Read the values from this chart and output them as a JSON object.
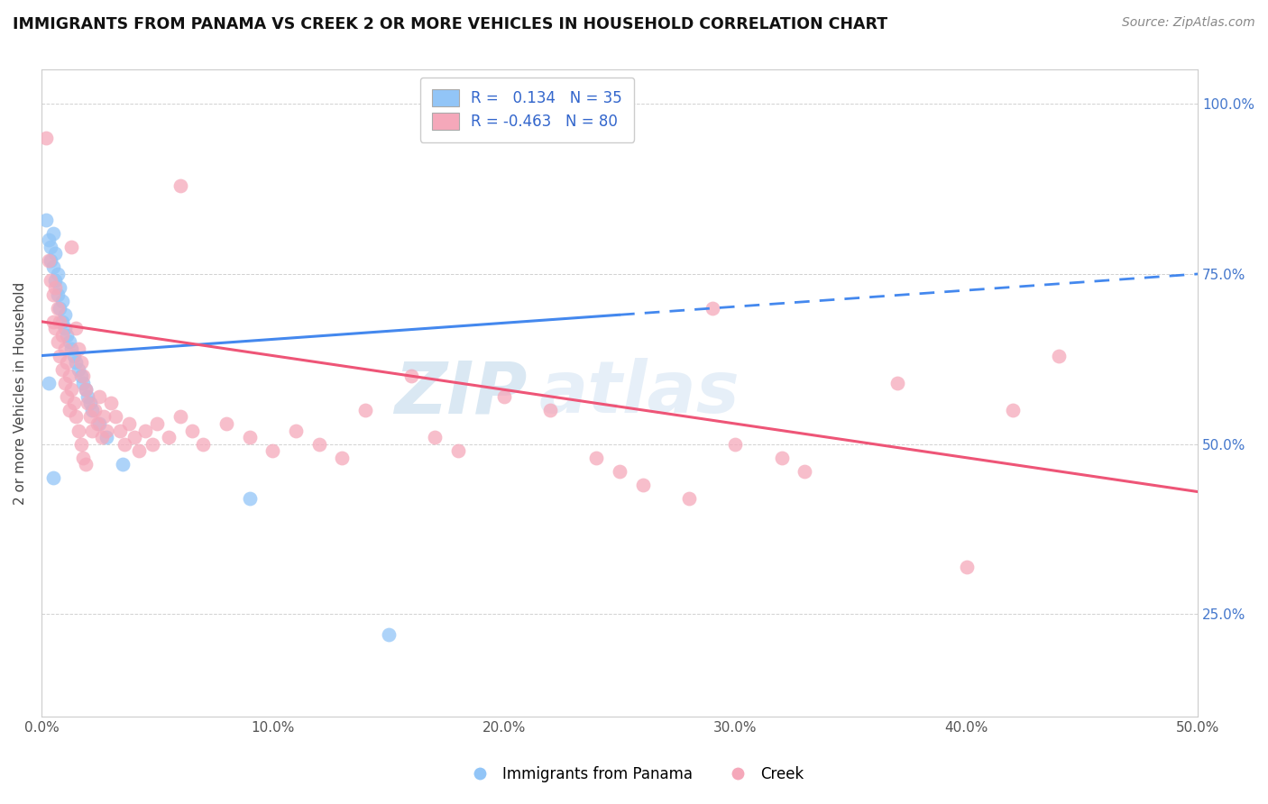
{
  "title": "IMMIGRANTS FROM PANAMA VS CREEK 2 OR MORE VEHICLES IN HOUSEHOLD CORRELATION CHART",
  "source": "Source: ZipAtlas.com",
  "ylabel": "2 or more Vehicles in Household",
  "xlim": [
    0.0,
    0.5
  ],
  "ylim": [
    0.1,
    1.05
  ],
  "xtick_labels": [
    "0.0%",
    "10.0%",
    "20.0%",
    "30.0%",
    "40.0%",
    "50.0%"
  ],
  "ytick_labels": [
    "25.0%",
    "50.0%",
    "75.0%",
    "100.0%"
  ],
  "ytick_values": [
    0.25,
    0.5,
    0.75,
    1.0
  ],
  "xtick_values": [
    0.0,
    0.1,
    0.2,
    0.3,
    0.4,
    0.5
  ],
  "r1": 0.134,
  "n1": 35,
  "r2": -0.463,
  "n2": 80,
  "color_panama": "#92C5F7",
  "color_creek": "#F5A8BA",
  "line_color_panama": "#4488EE",
  "line_color_creek": "#EE5577",
  "watermark_zip": "ZIP",
  "watermark_atlas": "atlas",
  "panama_points": [
    [
      0.002,
      0.83
    ],
    [
      0.003,
      0.8
    ],
    [
      0.004,
      0.79
    ],
    [
      0.004,
      0.77
    ],
    [
      0.005,
      0.81
    ],
    [
      0.005,
      0.76
    ],
    [
      0.006,
      0.78
    ],
    [
      0.006,
      0.74
    ],
    [
      0.007,
      0.75
    ],
    [
      0.007,
      0.72
    ],
    [
      0.008,
      0.73
    ],
    [
      0.008,
      0.7
    ],
    [
      0.009,
      0.71
    ],
    [
      0.009,
      0.68
    ],
    [
      0.01,
      0.69
    ],
    [
      0.01,
      0.67
    ],
    [
      0.011,
      0.66
    ],
    [
      0.012,
      0.65
    ],
    [
      0.013,
      0.64
    ],
    [
      0.014,
      0.63
    ],
    [
      0.015,
      0.62
    ],
    [
      0.016,
      0.61
    ],
    [
      0.017,
      0.6
    ],
    [
      0.018,
      0.59
    ],
    [
      0.019,
      0.58
    ],
    [
      0.02,
      0.57
    ],
    [
      0.021,
      0.56
    ],
    [
      0.022,
      0.55
    ],
    [
      0.025,
      0.53
    ],
    [
      0.028,
      0.51
    ],
    [
      0.035,
      0.47
    ],
    [
      0.15,
      0.22
    ],
    [
      0.09,
      0.42
    ],
    [
      0.003,
      0.59
    ],
    [
      0.005,
      0.45
    ]
  ],
  "creek_points": [
    [
      0.002,
      0.95
    ],
    [
      0.003,
      0.77
    ],
    [
      0.004,
      0.74
    ],
    [
      0.005,
      0.72
    ],
    [
      0.005,
      0.68
    ],
    [
      0.006,
      0.73
    ],
    [
      0.006,
      0.67
    ],
    [
      0.007,
      0.7
    ],
    [
      0.007,
      0.65
    ],
    [
      0.008,
      0.68
    ],
    [
      0.008,
      0.63
    ],
    [
      0.009,
      0.66
    ],
    [
      0.009,
      0.61
    ],
    [
      0.01,
      0.64
    ],
    [
      0.01,
      0.59
    ],
    [
      0.011,
      0.62
    ],
    [
      0.011,
      0.57
    ],
    [
      0.012,
      0.6
    ],
    [
      0.012,
      0.55
    ],
    [
      0.013,
      0.79
    ],
    [
      0.013,
      0.58
    ],
    [
      0.014,
      0.56
    ],
    [
      0.015,
      0.67
    ],
    [
      0.015,
      0.54
    ],
    [
      0.016,
      0.64
    ],
    [
      0.016,
      0.52
    ],
    [
      0.017,
      0.62
    ],
    [
      0.017,
      0.5
    ],
    [
      0.018,
      0.6
    ],
    [
      0.018,
      0.48
    ],
    [
      0.019,
      0.58
    ],
    [
      0.019,
      0.47
    ],
    [
      0.02,
      0.56
    ],
    [
      0.021,
      0.54
    ],
    [
      0.022,
      0.52
    ],
    [
      0.023,
      0.55
    ],
    [
      0.024,
      0.53
    ],
    [
      0.025,
      0.57
    ],
    [
      0.026,
      0.51
    ],
    [
      0.027,
      0.54
    ],
    [
      0.028,
      0.52
    ],
    [
      0.03,
      0.56
    ],
    [
      0.032,
      0.54
    ],
    [
      0.034,
      0.52
    ],
    [
      0.036,
      0.5
    ],
    [
      0.038,
      0.53
    ],
    [
      0.04,
      0.51
    ],
    [
      0.042,
      0.49
    ],
    [
      0.045,
      0.52
    ],
    [
      0.048,
      0.5
    ],
    [
      0.05,
      0.53
    ],
    [
      0.055,
      0.51
    ],
    [
      0.06,
      0.54
    ],
    [
      0.065,
      0.52
    ],
    [
      0.07,
      0.5
    ],
    [
      0.08,
      0.53
    ],
    [
      0.09,
      0.51
    ],
    [
      0.1,
      0.49
    ],
    [
      0.11,
      0.52
    ],
    [
      0.12,
      0.5
    ],
    [
      0.13,
      0.48
    ],
    [
      0.14,
      0.55
    ],
    [
      0.16,
      0.6
    ],
    [
      0.17,
      0.51
    ],
    [
      0.18,
      0.49
    ],
    [
      0.2,
      0.57
    ],
    [
      0.22,
      0.55
    ],
    [
      0.24,
      0.48
    ],
    [
      0.25,
      0.46
    ],
    [
      0.26,
      0.44
    ],
    [
      0.28,
      0.42
    ],
    [
      0.3,
      0.5
    ],
    [
      0.32,
      0.48
    ],
    [
      0.33,
      0.46
    ],
    [
      0.37,
      0.59
    ],
    [
      0.4,
      0.32
    ],
    [
      0.42,
      0.55
    ],
    [
      0.44,
      0.63
    ],
    [
      0.06,
      0.88
    ],
    [
      0.29,
      0.7
    ]
  ],
  "panama_line": [
    0.0,
    0.5,
    0.63,
    0.75
  ],
  "creek_line": [
    0.0,
    0.5,
    0.68,
    0.43
  ]
}
